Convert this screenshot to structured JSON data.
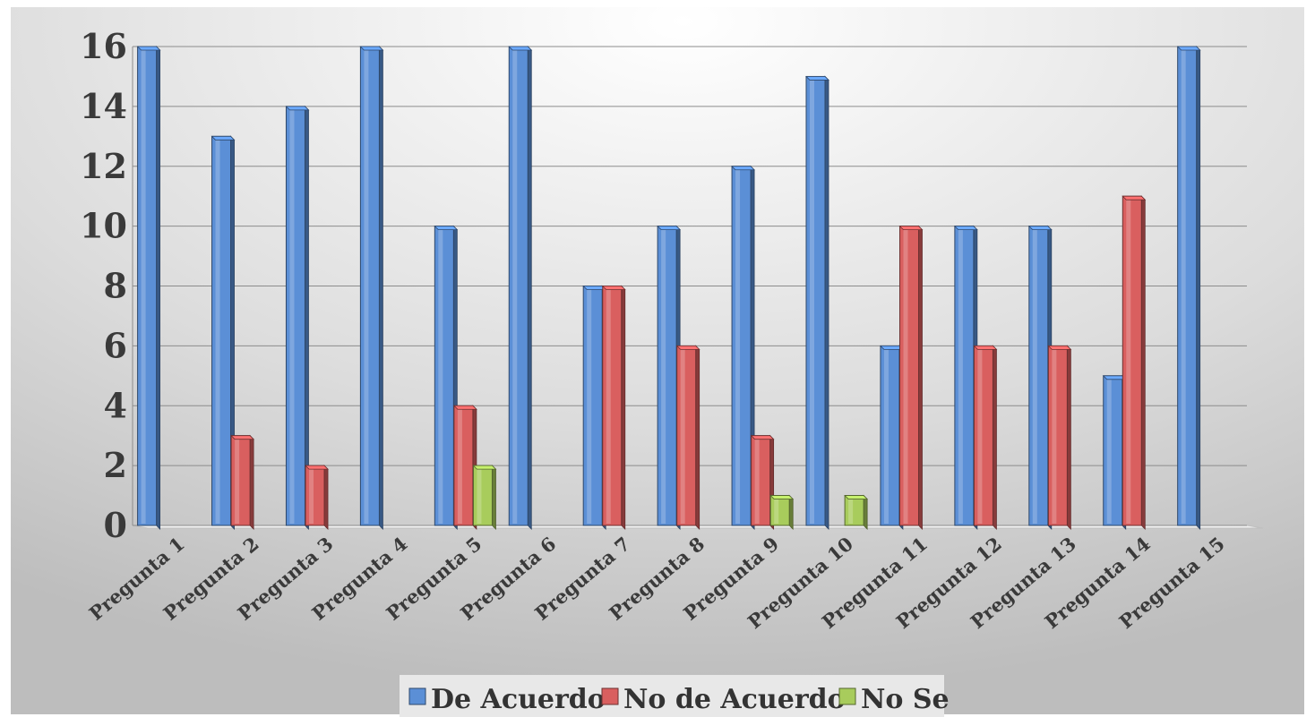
{
  "chart_data": {
    "type": "bar",
    "title": "",
    "xlabel": "",
    "ylabel": "",
    "categories": [
      "Pregunta 1",
      "Pregunta 2",
      "Pregunta 3",
      "Pregunta 4",
      "Pregunta 5",
      "Pregunta 6",
      "Pregunta 7",
      "Pregunta 8",
      "Pregunta 9",
      "Pregunta 10",
      "Pregunta 11",
      "Pregunta 12",
      "Pregunta 13",
      "Pregunta 14",
      "Pregunta 15"
    ],
    "series": [
      {
        "name": "De Acuerdo",
        "color": "#5b8fd6",
        "values": [
          16,
          13,
          14,
          16,
          10,
          16,
          8,
          10,
          12,
          15,
          6,
          10,
          10,
          5,
          16
        ]
      },
      {
        "name": "No de Acuerdo",
        "color": "#d95f5f",
        "values": [
          0,
          3,
          2,
          0,
          4,
          0,
          8,
          6,
          3,
          0,
          10,
          6,
          6,
          11,
          0
        ]
      },
      {
        "name": "No Se",
        "color": "#a8cc5c",
        "values": [
          0,
          0,
          0,
          0,
          2,
          0,
          0,
          0,
          1,
          1,
          0,
          0,
          0,
          0,
          0
        ]
      }
    ],
    "ylim": [
      0,
      16
    ],
    "yticks": [
      "0",
      "2",
      "4",
      "6",
      "8",
      "10",
      "12",
      "14",
      "16"
    ],
    "grid": true,
    "legend_position": "bottom"
  }
}
